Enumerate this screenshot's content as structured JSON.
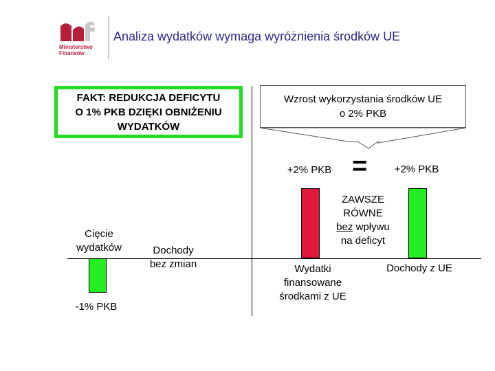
{
  "header": {
    "logo_text_line1": "Ministerstwo",
    "logo_text_line2": "Finansów",
    "title": "Analiza wydatków wymaga wyróżnienia środków UE"
  },
  "fact_box": {
    "lines": [
      "FAKT: REDUKCJA DEFICYTU",
      "O 1% PKB DZIĘKI OBNIŻENIU",
      "WYDATKÓW"
    ]
  },
  "growth_box": {
    "lines": [
      "Wzrost wykorzystania środków UE",
      "o 2% PKB"
    ]
  },
  "left_section": {
    "cuts_label_lines": [
      "Cięcie",
      "wydatków"
    ],
    "cuts_value_label": "-1% PKB",
    "no_change_label_lines": [
      "Dochody",
      "bez zmian"
    ]
  },
  "right_section": {
    "plus_left": "+2% PKB",
    "plus_right": "+2% PKB",
    "equals": "=",
    "equal_note": {
      "line1": "ZAWSZE",
      "line2": "RÓWNE",
      "line3_underlined": "bez",
      "line3_rest": " wpływu",
      "line4": "na deficyt"
    },
    "spend_label_lines": [
      "Wydatki",
      "finansowane",
      "środkami z UE"
    ],
    "income_label": "Dochody z UE"
  },
  "chart_data": {
    "type": "bar",
    "categories": [
      "Cięcie wydatków",
      "Dochody bez zmian",
      "Wydatki finansowane środkami z UE",
      "Dochody z UE"
    ],
    "values": [
      -1,
      0,
      2,
      2
    ],
    "value_labels": [
      "-1% PKB",
      "",
      "+2% PKB",
      "+2% PKB"
    ],
    "colors": [
      "#22ee22",
      "#22ee22",
      "#e0193b",
      "#22ee22"
    ]
  },
  "colors": {
    "title": "#2a2a8a",
    "logo": "#b51f39",
    "green": "#22ee22",
    "red": "#e0193b",
    "fact_border": "#22dd22"
  }
}
